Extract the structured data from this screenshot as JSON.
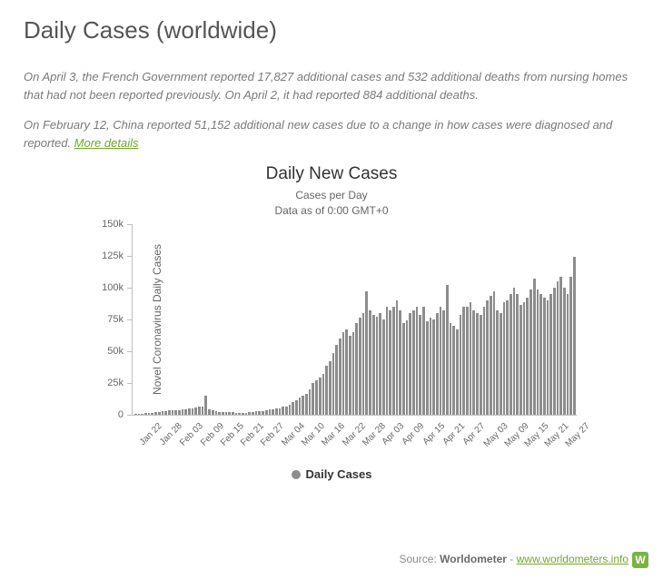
{
  "page": {
    "title": "Daily Cases (worldwide)",
    "note1": "On April 3, the French Government reported 17,827 additional cases and 532 additional deaths from nursing homes that had not been reported previously. On April 2, it had reported 884 additional deaths.",
    "note2": "On February 12, China reported 51,152 additional new cases due to a change in how cases were diagnosed and reported. ",
    "more_label": "More details"
  },
  "chart": {
    "type": "bar",
    "title": "Daily New Cases",
    "subtitle1": "Cases per Day",
    "subtitle2": "Data as of 0:00 GMT+0",
    "ylabel": "Novel Coronavirus Daily Cases",
    "legend_label": "Daily Cases",
    "bar_color": "#8d8d8d",
    "background_color": "#ffffff",
    "axis_color": "#bfbfbf",
    "text_color": "#666666",
    "ylim": [
      0,
      150000
    ],
    "yticks": [
      {
        "v": 0,
        "label": "0"
      },
      {
        "v": 25000,
        "label": "25k"
      },
      {
        "v": 50000,
        "label": "50k"
      },
      {
        "v": 75000,
        "label": "75k"
      },
      {
        "v": 100000,
        "label": "100k"
      },
      {
        "v": 125000,
        "label": "125k"
      },
      {
        "v": 150000,
        "label": "150k"
      }
    ],
    "x_labels": [
      "Jan 22",
      "Jan 28",
      "Feb 03",
      "Feb 09",
      "Feb 15",
      "Feb 21",
      "Feb 27",
      "Mar 04",
      "Mar 10",
      "Mar 16",
      "Mar 22",
      "Mar 28",
      "Apr 03",
      "Apr 09",
      "Apr 15",
      "Apr 21",
      "Apr 27",
      "May 03",
      "May 09",
      "May 15",
      "May 21",
      "May 27"
    ],
    "values": [
      100,
      300,
      500,
      800,
      900,
      1500,
      1800,
      2200,
      2600,
      2800,
      3000,
      3100,
      3200,
      3400,
      3800,
      4200,
      4600,
      5000,
      5500,
      6000,
      6200,
      15000,
      4000,
      3000,
      2500,
      2200,
      2000,
      1800,
      1700,
      1600,
      1500,
      1400,
      1400,
      1500,
      1700,
      2000,
      2500,
      2500,
      2800,
      3200,
      3800,
      4200,
      4500,
      5000,
      5800,
      6500,
      7800,
      9500,
      11000,
      13500,
      14500,
      16000,
      20000,
      25000,
      27000,
      29000,
      32000,
      38000,
      42000,
      48000,
      55000,
      60000,
      65000,
      67000,
      62000,
      65000,
      72000,
      76000,
      80000,
      97000,
      82000,
      78000,
      77000,
      80000,
      75000,
      85000,
      82000,
      85000,
      90000,
      82000,
      72000,
      74000,
      80000,
      82000,
      85000,
      78000,
      85000,
      73000,
      76000,
      75000,
      80000,
      85000,
      82000,
      102000,
      72000,
      70000,
      67000,
      78000,
      85000,
      85000,
      88000,
      82000,
      80000,
      78000,
      85000,
      90000,
      93000,
      97000,
      82000,
      80000,
      88000,
      90000,
      95000,
      100000,
      95000,
      86000,
      88000,
      92000,
      98000,
      107000,
      98000,
      95000,
      92000,
      90000,
      95000,
      100000,
      105000,
      108000,
      100000,
      95000,
      108000,
      124000
    ]
  },
  "footer": {
    "source_label": "Source: ",
    "source_name": "Worldometer",
    "sep": " - ",
    "link_text": "www.worldometers.info",
    "logo_letter": "W"
  }
}
